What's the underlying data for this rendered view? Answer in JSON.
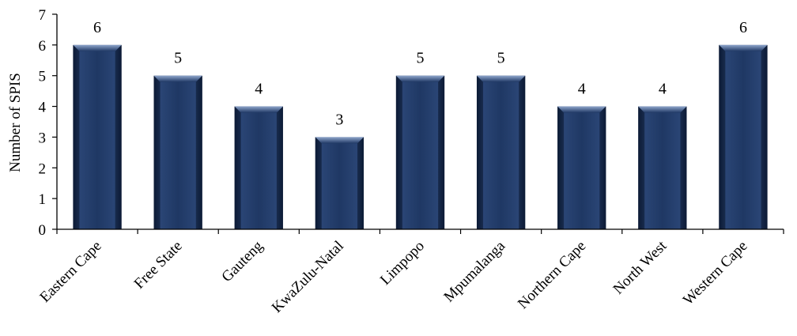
{
  "chart_data": {
    "type": "bar",
    "title": "",
    "xlabel": "",
    "ylabel": "Number of SPIS",
    "categories": [
      "Eastern Cape",
      "Free State",
      "Gauteng",
      "KwaZulu-Natal",
      "Limpopo",
      "Mpumalanga",
      "Northern Cape",
      "North West",
      "Western Cape"
    ],
    "values": [
      6,
      5,
      4,
      3,
      5,
      5,
      4,
      4,
      6
    ],
    "ylim": [
      0,
      7
    ],
    "yticks": [
      0,
      1,
      2,
      3,
      4,
      5,
      6,
      7
    ],
    "grid": false,
    "legend": "none",
    "data_labels": true
  },
  "colors": {
    "bar": "#1f3864",
    "bar_dark": "#0f1f3d",
    "bar_light": "#6d86b3",
    "axis": "#000000",
    "text": "#000000"
  }
}
